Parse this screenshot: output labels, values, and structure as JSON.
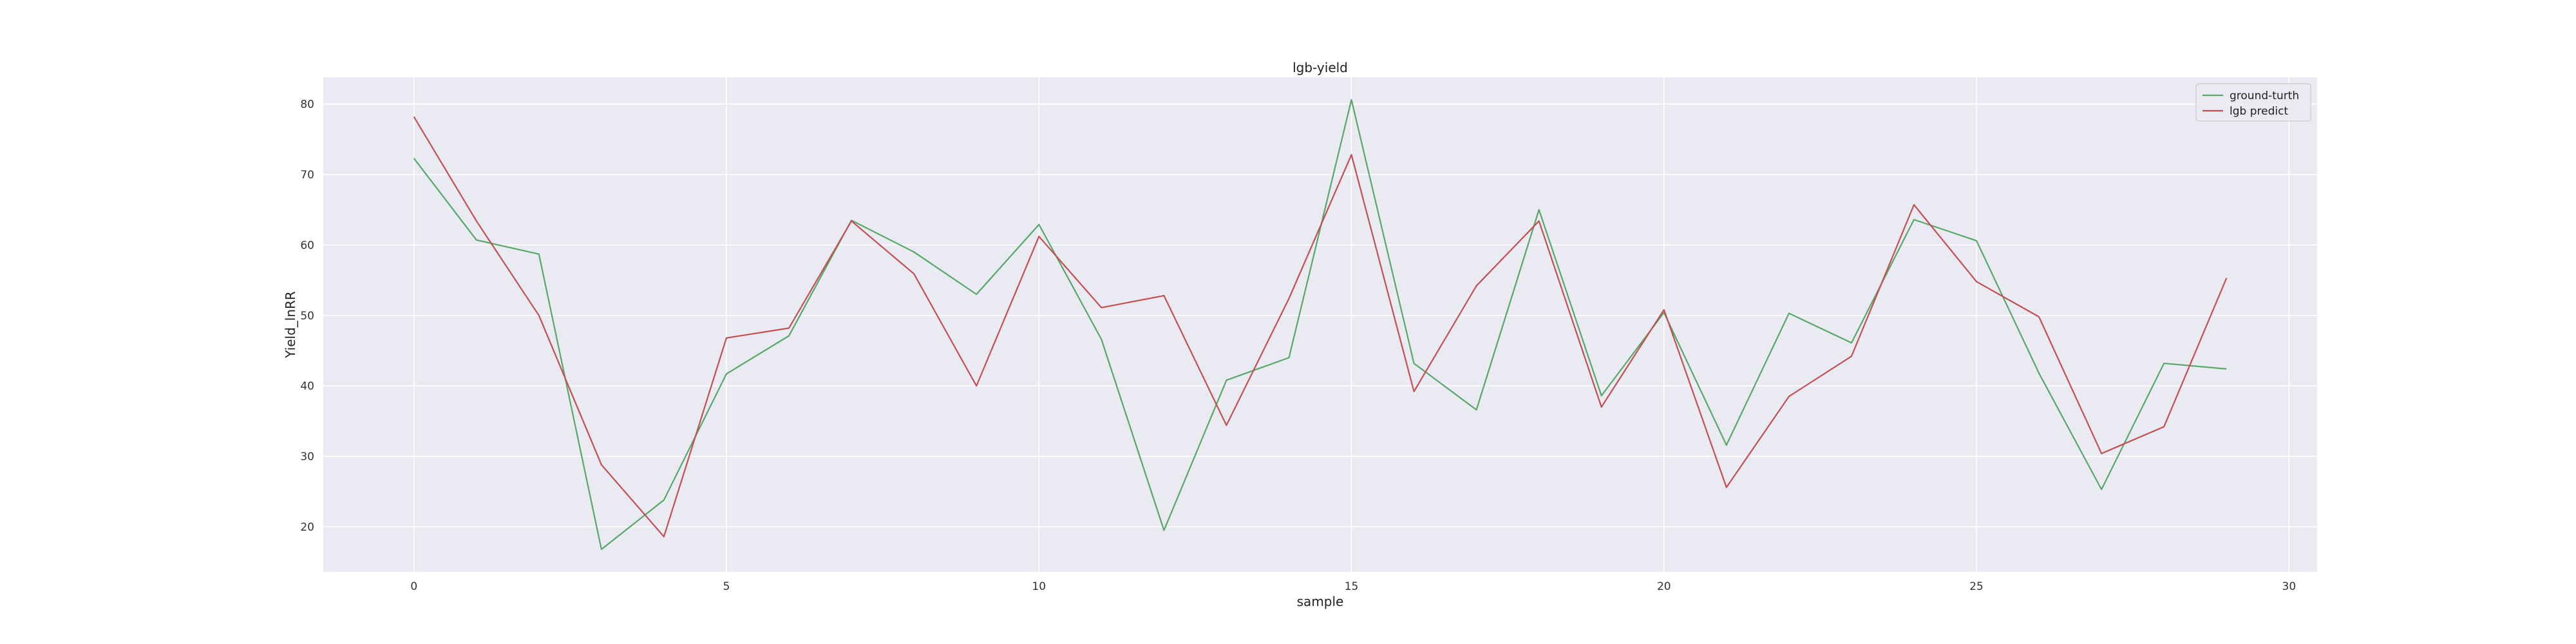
{
  "chart_data": {
    "type": "line",
    "title": "lgb-yield",
    "xlabel": "sample",
    "ylabel": "Yield_lnRR",
    "xlim": [
      -1.45,
      30.45
    ],
    "ylim": [
      13.6,
      83.8
    ],
    "xticks": [
      0,
      5,
      10,
      15,
      20,
      25,
      30
    ],
    "yticks": [
      20,
      30,
      40,
      50,
      60,
      70,
      80
    ],
    "grid": true,
    "legend_position": "top-right",
    "colors": {
      "background": "#eaeaf2",
      "grid": "#ffffff",
      "ground_truth": "#55a868",
      "predict": "#c44e52"
    },
    "x": [
      0,
      1,
      2,
      3,
      4,
      5,
      6,
      7,
      8,
      9,
      10,
      11,
      12,
      13,
      14,
      15,
      16,
      17,
      18,
      19,
      20,
      21,
      22,
      23,
      24,
      25,
      26,
      27,
      28,
      29
    ],
    "series": [
      {
        "name": "ground-turth",
        "color_key": "ground_truth",
        "values": [
          72.3,
          60.7,
          58.7,
          16.8,
          23.8,
          41.7,
          47.1,
          63.5,
          59.0,
          53.0,
          62.9,
          46.6,
          19.5,
          40.8,
          44.0,
          80.6,
          43.2,
          36.6,
          65.0,
          38.6,
          50.4,
          31.6,
          50.3,
          46.1,
          63.6,
          60.6,
          41.8,
          25.3,
          43.2,
          42.4
        ]
      },
      {
        "name": "lgb predict",
        "color_key": "predict",
        "values": [
          78.2,
          63.4,
          50.0,
          28.8,
          18.6,
          46.8,
          48.2,
          63.4,
          55.9,
          40.0,
          61.2,
          51.1,
          52.8,
          34.4,
          52.4,
          72.8,
          39.2,
          54.2,
          63.4,
          37.0,
          50.8,
          25.6,
          38.5,
          44.2,
          65.7,
          54.8,
          49.8,
          30.4,
          34.2,
          55.3
        ]
      }
    ]
  }
}
